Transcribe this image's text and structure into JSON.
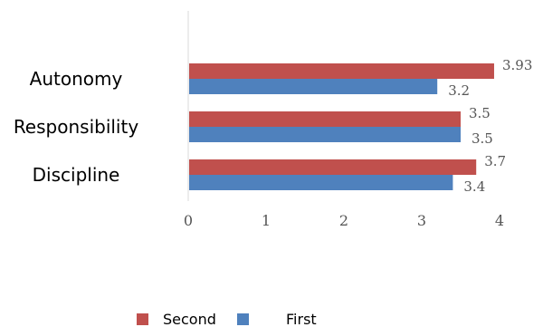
{
  "chart_data": {
    "type": "bar",
    "orientation": "horizontal",
    "categories": [
      "Autonomy",
      "Responsibility",
      "Discipline"
    ],
    "series": [
      {
        "name": "Second",
        "color": "#c0504d",
        "values": [
          3.93,
          3.5,
          3.7
        ]
      },
      {
        "name": "First",
        "color": "#4f81bd",
        "values": [
          3.2,
          3.5,
          3.4
        ]
      }
    ],
    "xlim": [
      0,
      4
    ],
    "xticks": [
      "0",
      "1",
      "2",
      "3",
      "4"
    ],
    "data_labels": {
      "Second": [
        "3.93",
        "3.5",
        "3.7"
      ],
      "First": [
        "3.2",
        "3.5",
        "3.4"
      ]
    },
    "grid": false,
    "legend": "bottom"
  }
}
